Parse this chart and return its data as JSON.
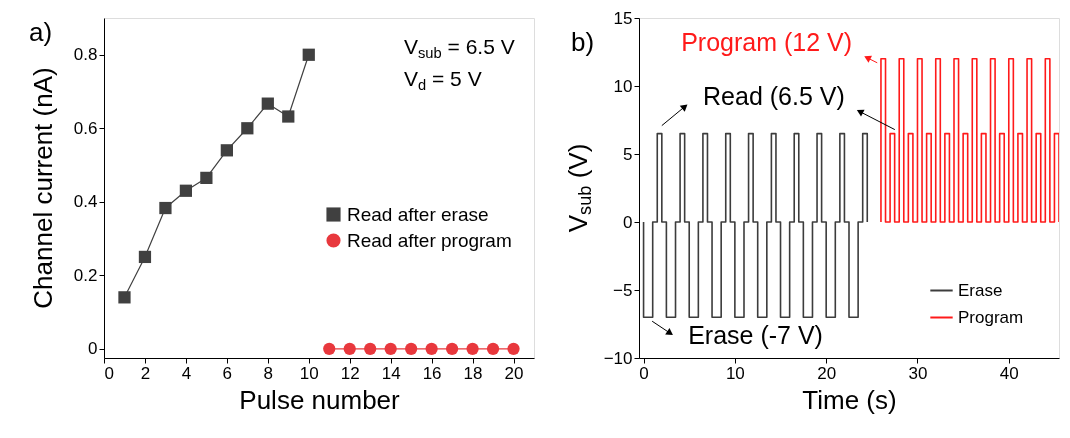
{
  "chart_data": [
    {
      "type": "line",
      "title": "a)",
      "xlabel": "Pulse number",
      "ylabel": "Channel current (nA)",
      "xlim": [
        0,
        21
      ],
      "xticks": [
        0,
        2,
        4,
        6,
        8,
        10,
        12,
        14,
        16,
        18,
        20
      ],
      "ylim": [
        -0.025,
        0.9
      ],
      "yticks": [
        {
          "value": 0,
          "label": "0"
        },
        0.2,
        0.4,
        0.6,
        0.8
      ],
      "grid": false,
      "legend": "right",
      "series": [
        {
          "name": "Read after erase",
          "color": "#404040",
          "marker": "square",
          "x": [
            1,
            2,
            3,
            4,
            5,
            6,
            7,
            8,
            9,
            10
          ],
          "values": [
            0.14,
            0.25,
            0.383,
            0.43,
            0.465,
            0.54,
            0.6,
            0.667,
            0.632,
            0.8
          ]
        },
        {
          "name": "Read after program",
          "color": "#e8383d",
          "marker": "circle",
          "x": [
            11,
            12,
            13,
            14,
            15,
            16,
            17,
            18,
            19,
            20
          ],
          "values": [
            0,
            0,
            0,
            0,
            0,
            0,
            0,
            0,
            0,
            0
          ]
        }
      ],
      "annotations": [
        "V$_{sub}$ = 6.5 V",
        "V$_{d}$ = 5 V"
      ]
    },
    {
      "type": "step",
      "title": "b)",
      "xlabel": "Time (s)",
      "ylabel": "V$_{sub}$ (V)",
      "xlim": [
        -0.5,
        45.5
      ],
      "xticks": [
        0,
        10,
        20,
        30,
        40
      ],
      "ylim": [
        -10,
        15
      ],
      "yticks": [
        -10,
        -5,
        0,
        5,
        10,
        15
      ],
      "grid": false,
      "legend": "bottom right",
      "marker": "none",
      "series": [
        {
          "name": "Erase",
          "color": "#3c3c3c",
          "x": [
            0,
            0,
            1,
            1.5,
            2,
            2.5,
            3.5,
            4,
            4.5,
            5,
            6,
            6.5,
            7,
            7.5,
            8.5,
            9,
            9.5,
            10,
            11,
            11.5,
            12,
            12.5,
            13.5,
            14,
            14.5,
            15,
            16,
            16.5,
            17,
            17.5,
            18.5,
            19,
            19.5,
            20,
            21,
            21.5,
            22,
            22.5,
            23.5,
            24,
            24.5
          ],
          "values": [
            0,
            -7,
            0,
            6.5,
            0,
            -7,
            0,
            6.5,
            0,
            -7,
            0,
            6.5,
            0,
            -7,
            0,
            6.5,
            0,
            -7,
            0,
            6.5,
            0,
            -7,
            0,
            6.5,
            0,
            -7,
            0,
            6.5,
            0,
            -7,
            0,
            6.5,
            0,
            -7,
            0,
            6.5,
            0,
            -7,
            0,
            6.5,
            0
          ]
        },
        {
          "name": "Program",
          "color": "#ff1a1a",
          "x": [
            26,
            26,
            26.5,
            27,
            27.5,
            28,
            28.5,
            29,
            29.5,
            30,
            30.5,
            31,
            31.5,
            32,
            32.5,
            33,
            33.5,
            34,
            34.5,
            35,
            35.5,
            36,
            36.5,
            37,
            37.5,
            38,
            38.5,
            39,
            39.5,
            40,
            40.5,
            41,
            41.5,
            42,
            42.5,
            43,
            43.5,
            44,
            44.5,
            45,
            45.5
          ],
          "values": [
            0,
            12,
            0,
            6.5,
            0,
            12,
            0,
            6.5,
            0,
            12,
            0,
            6.5,
            0,
            12,
            0,
            6.5,
            0,
            12,
            0,
            6.5,
            0,
            12,
            0,
            6.5,
            0,
            12,
            0,
            6.5,
            0,
            12,
            0,
            6.5,
            0,
            12,
            0,
            6.5,
            0,
            12,
            0,
            6.5,
            0
          ]
        }
      ],
      "annotations": [
        {
          "text": "Read (6.5 V)",
          "x": 2,
          "y": 6.5
        },
        {
          "text": "Erase (-7 V)",
          "x": 0.5,
          "y": -7
        },
        {
          "text": "Program (12 V)",
          "x": 26.25,
          "y": 12
        }
      ]
    }
  ]
}
